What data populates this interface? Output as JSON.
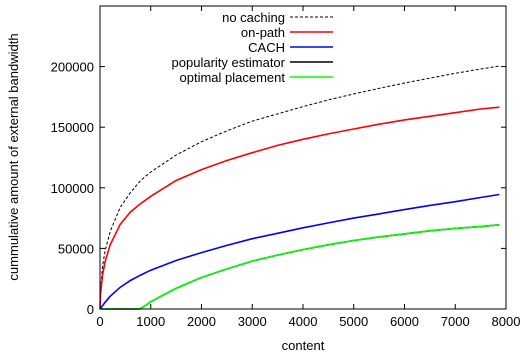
{
  "chart_data": {
    "type": "line",
    "xlabel": "content",
    "ylabel": "cummulative amount of external bandwidth",
    "xlim": [
      0,
      8000
    ],
    "ylim": [
      0,
      250000
    ],
    "x_ticks": [
      0,
      1000,
      2000,
      3000,
      4000,
      5000,
      6000,
      7000,
      8000
    ],
    "y_ticks": [
      0,
      50000,
      100000,
      150000,
      200000
    ],
    "grid": false,
    "legend_position": "top-center",
    "series": [
      {
        "name": "no caching",
        "color": "#000000",
        "dashed": true,
        "x": [
          0,
          10,
          50,
          100,
          200,
          400,
          600,
          800,
          1000,
          1500,
          2000,
          2500,
          3000,
          3500,
          4000,
          4500,
          5000,
          5500,
          6000,
          6500,
          7000,
          7500,
          7870
        ],
        "y": [
          0,
          15000,
          35000,
          48000,
          64000,
          84000,
          96000,
          106000,
          113000,
          127000,
          138000,
          147000,
          155000,
          161000,
          167000,
          172500,
          177500,
          182000,
          186500,
          190500,
          194500,
          198000,
          200500
        ]
      },
      {
        "name": "on-path",
        "color": "#ff0000",
        "dashed": false,
        "x": [
          0,
          10,
          50,
          100,
          200,
          400,
          600,
          800,
          1000,
          1500,
          2000,
          2500,
          3000,
          3500,
          4000,
          4500,
          5000,
          5500,
          6000,
          6500,
          7000,
          7500,
          7870
        ],
        "y": [
          0,
          12000,
          28000,
          39000,
          53000,
          70000,
          80000,
          87000,
          93000,
          106000,
          115000,
          122500,
          129000,
          135000,
          140000,
          144500,
          148500,
          152500,
          156000,
          159000,
          162000,
          165000,
          166500
        ]
      },
      {
        "name": "CACH",
        "color": "#0000ff",
        "dashed": false,
        "x": [
          0,
          100,
          200,
          400,
          600,
          800,
          1000,
          1500,
          2000,
          2500,
          3000,
          3500,
          4000,
          4500,
          5000,
          5500,
          6000,
          6500,
          7000,
          7500,
          7870
        ],
        "y": [
          0,
          5500,
          10500,
          18000,
          23500,
          28000,
          32000,
          40000,
          46500,
          52500,
          58000,
          62500,
          67000,
          71000,
          75000,
          78500,
          82000,
          85500,
          88500,
          92000,
          94500
        ]
      },
      {
        "name": "popularity estimator",
        "color": "#000000",
        "dashed": false,
        "x": [
          0,
          780,
          800,
          900,
          1000,
          1500,
          2000,
          2500,
          3000,
          3500,
          4000,
          4500,
          5000,
          5500,
          6000,
          6500,
          7000,
          7500,
          7870
        ],
        "y": [
          0,
          0,
          500,
          3000,
          6000,
          17000,
          26000,
          33000,
          39500,
          44500,
          49000,
          53000,
          56500,
          59500,
          62000,
          64500,
          66500,
          68000,
          69500
        ]
      },
      {
        "name": "optimal placement",
        "color": "#00ff00",
        "dashed": false,
        "x": [
          0,
          780,
          800,
          900,
          1000,
          1500,
          2000,
          2500,
          3000,
          3500,
          4000,
          4500,
          5000,
          5500,
          6000,
          6500,
          7000,
          7500,
          7870
        ],
        "y": [
          0,
          0,
          500,
          3000,
          6000,
          17000,
          26000,
          33000,
          39500,
          44500,
          49000,
          53000,
          56500,
          59500,
          62000,
          64500,
          66500,
          68000,
          69500
        ]
      }
    ]
  }
}
